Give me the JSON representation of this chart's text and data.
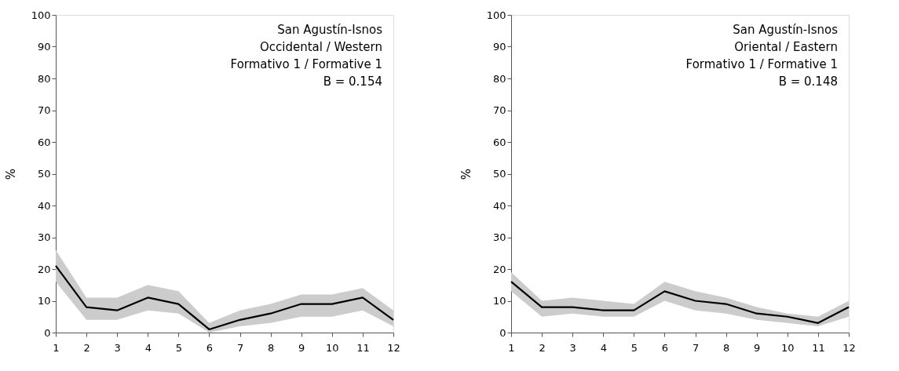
{
  "chart_data": [
    {
      "type": "line",
      "ylabel": "%",
      "annotations": [
        "San Agustín-Isnos",
        "Occidental / Western",
        "Formativo 1 / Formative 1",
        "B = 0.154"
      ],
      "x": [
        1,
        2,
        3,
        4,
        5,
        6,
        7,
        8,
        9,
        10,
        11,
        12
      ],
      "xlim": [
        1,
        12
      ],
      "xticks": [
        1,
        2,
        3,
        4,
        5,
        6,
        7,
        8,
        9,
        10,
        11,
        12
      ],
      "ylim": [
        0,
        100
      ],
      "yticks": [
        0,
        10,
        20,
        30,
        40,
        50,
        60,
        70,
        80,
        90,
        100
      ],
      "series": [
        {
          "color": "#000000",
          "values": [
            21,
            8,
            7,
            11,
            9,
            1,
            4,
            6,
            9,
            9,
            11,
            4
          ],
          "lower": [
            16,
            4,
            4,
            7,
            6,
            0,
            2,
            3,
            5,
            5,
            7,
            2
          ],
          "upper": [
            26,
            11,
            11,
            15,
            13,
            3,
            7,
            9,
            12,
            12,
            14,
            7
          ]
        }
      ]
    },
    {
      "type": "line",
      "ylabel": "%",
      "annotations": [
        "San Agustín-Isnos",
        "Oriental / Eastern",
        "Formativo 1 / Formative 1",
        "B = 0.148"
      ],
      "x": [
        1,
        2,
        3,
        4,
        5,
        6,
        7,
        8,
        9,
        10,
        11,
        12
      ],
      "xlim": [
        1,
        12
      ],
      "xticks": [
        1,
        2,
        3,
        4,
        5,
        6,
        7,
        8,
        9,
        10,
        11,
        12
      ],
      "ylim": [
        0,
        100
      ],
      "yticks": [
        0,
        10,
        20,
        30,
        40,
        50,
        60,
        70,
        80,
        90,
        100
      ],
      "series": [
        {
          "color": "#000000",
          "values": [
            16,
            8,
            8,
            7,
            7,
            13,
            10,
            9,
            6,
            5,
            3,
            8
          ],
          "lower": [
            13,
            5,
            6,
            5,
            5,
            10,
            7,
            6,
            4,
            3,
            2,
            5
          ],
          "upper": [
            19,
            10,
            11,
            10,
            9,
            16,
            13,
            11,
            8,
            6,
            5,
            10
          ]
        }
      ]
    }
  ]
}
